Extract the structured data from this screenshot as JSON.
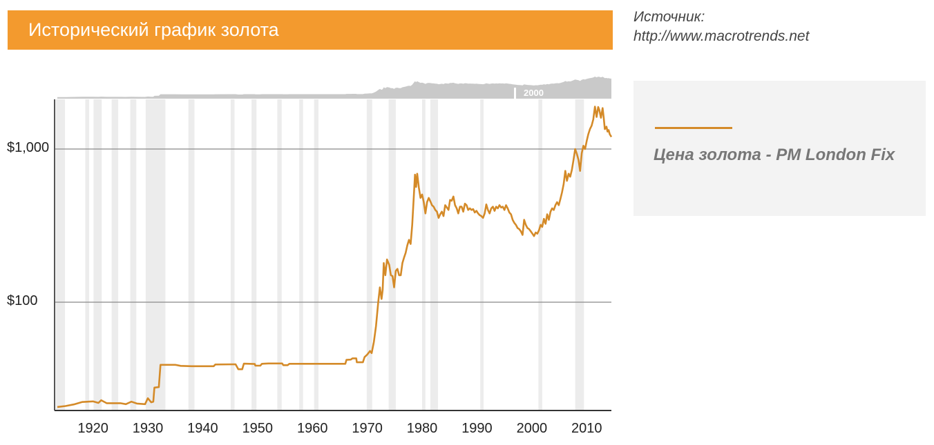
{
  "header": {
    "title": "Исторический график золота"
  },
  "source": {
    "label": "Источник:",
    "url": "http://www.macrotrends.net"
  },
  "legend": {
    "label": "Цена золота - PM London Fix",
    "color": "#d48a28"
  },
  "colors": {
    "title_bar": "#f39a2e",
    "line": "#d48a28",
    "recession_band": "#ececec",
    "navigator": "#c9c9c9",
    "grid": "#888888"
  },
  "navigator": {
    "marker_label": "2000"
  },
  "chart_data": {
    "type": "line",
    "title": "Исторический график золота",
    "xlabel": "",
    "ylabel": "",
    "y_scale": "log",
    "ylim": [
      20,
      1900
    ],
    "xlim": [
      1913,
      2014.5
    ],
    "y_ticks": [
      {
        "value": 100,
        "label": "$100"
      },
      {
        "value": 1000,
        "label": "$1,000"
      }
    ],
    "x_ticks": [
      {
        "value": 1920,
        "label": "1920"
      },
      {
        "value": 1930,
        "label": "1930"
      },
      {
        "value": 1940,
        "label": "1940"
      },
      {
        "value": 1950,
        "label": "1950"
      },
      {
        "value": 1960,
        "label": "1960"
      },
      {
        "value": 1970,
        "label": "1970"
      },
      {
        "value": 1980,
        "label": "1980"
      },
      {
        "value": 1990,
        "label": "1990"
      },
      {
        "value": 2000,
        "label": "2000"
      },
      {
        "value": 2010,
        "label": "2010"
      }
    ],
    "recession_bands": [
      [
        1913.2,
        1914.9
      ],
      [
        1918.6,
        1919.3
      ],
      [
        1920.1,
        1921.6
      ],
      [
        1923.4,
        1924.6
      ],
      [
        1926.8,
        1927.9
      ],
      [
        1929.6,
        1933.2
      ],
      [
        1937.4,
        1938.5
      ],
      [
        1945.1,
        1945.8
      ],
      [
        1948.9,
        1949.8
      ],
      [
        1953.6,
        1954.4
      ],
      [
        1957.6,
        1958.3
      ],
      [
        1960.3,
        1961.1
      ],
      [
        1969.9,
        1970.9
      ],
      [
        1973.9,
        1975.2
      ],
      [
        1980.0,
        1980.6
      ],
      [
        1981.5,
        1982.9
      ],
      [
        1990.6,
        1991.2
      ],
      [
        2001.2,
        2001.9
      ],
      [
        2007.9,
        2009.5
      ]
    ],
    "series": [
      {
        "name": "Цена золота - PM London Fix",
        "points": [
          [
            1913.5,
            20.7
          ],
          [
            1915.0,
            21.0
          ],
          [
            1916.5,
            21.5
          ],
          [
            1918.0,
            22.3
          ],
          [
            1920.0,
            22.5
          ],
          [
            1921.0,
            22.0
          ],
          [
            1921.5,
            22.9
          ],
          [
            1922.5,
            21.9
          ],
          [
            1925.0,
            21.9
          ],
          [
            1926.0,
            21.6
          ],
          [
            1927.0,
            22.4
          ],
          [
            1928.0,
            21.8
          ],
          [
            1929.5,
            21.6
          ],
          [
            1930.0,
            23.6
          ],
          [
            1930.6,
            22.2
          ],
          [
            1931.0,
            22.4
          ],
          [
            1931.2,
            27.7
          ],
          [
            1932.0,
            27.9
          ],
          [
            1932.3,
            39.0
          ],
          [
            1935.0,
            39.0
          ],
          [
            1936.0,
            38.4
          ],
          [
            1938.0,
            38.2
          ],
          [
            1942.0,
            38.2
          ],
          [
            1942.3,
            39.2
          ],
          [
            1946.0,
            39.3
          ],
          [
            1946.5,
            36.5
          ],
          [
            1947.2,
            36.5
          ],
          [
            1947.5,
            39.7
          ],
          [
            1949.5,
            39.5
          ],
          [
            1949.6,
            38.5
          ],
          [
            1950.5,
            38.5
          ],
          [
            1950.8,
            39.6
          ],
          [
            1952.0,
            39.8
          ],
          [
            1954.5,
            39.8
          ],
          [
            1954.7,
            38.8
          ],
          [
            1955.5,
            38.8
          ],
          [
            1955.8,
            39.6
          ],
          [
            1960.0,
            39.6
          ],
          [
            1964.0,
            39.6
          ],
          [
            1966.0,
            39.6
          ],
          [
            1966.2,
            42.0
          ],
          [
            1967.0,
            42.2
          ],
          [
            1967.3,
            43.0
          ],
          [
            1968.0,
            43.0
          ],
          [
            1968.1,
            40.5
          ],
          [
            1969.2,
            40.5
          ],
          [
            1969.5,
            43.8
          ],
          [
            1970.0,
            45.5
          ],
          [
            1970.5,
            48.0
          ],
          [
            1970.8,
            46.5
          ],
          [
            1971.2,
            55.0
          ],
          [
            1971.6,
            70.0
          ],
          [
            1972.0,
            100.0
          ],
          [
            1972.3,
            125.0
          ],
          [
            1972.6,
            105.0
          ],
          [
            1972.8,
            120.0
          ],
          [
            1973.0,
            180.0
          ],
          [
            1973.3,
            150.0
          ],
          [
            1973.6,
            190.0
          ],
          [
            1974.0,
            175.0
          ],
          [
            1974.3,
            150.0
          ],
          [
            1974.6,
            148.0
          ],
          [
            1974.9,
            125.0
          ],
          [
            1975.2,
            160.0
          ],
          [
            1975.5,
            165.0
          ],
          [
            1975.8,
            150.0
          ],
          [
            1976.1,
            150.0
          ],
          [
            1976.4,
            180.0
          ],
          [
            1976.7,
            195.0
          ],
          [
            1977.0,
            210.0
          ],
          [
            1977.3,
            235.0
          ],
          [
            1977.6,
            255.0
          ],
          [
            1977.9,
            240.0
          ],
          [
            1978.2,
            320.0
          ],
          [
            1978.5,
            500.0
          ],
          [
            1978.7,
            680.0
          ],
          [
            1978.9,
            565.0
          ],
          [
            1979.1,
            690.0
          ],
          [
            1979.4,
            560.0
          ],
          [
            1979.7,
            480.0
          ],
          [
            1980.0,
            505.0
          ],
          [
            1980.3,
            450.0
          ],
          [
            1980.6,
            380.0
          ],
          [
            1980.9,
            450.0
          ],
          [
            1981.2,
            480.0
          ],
          [
            1981.5,
            455.0
          ],
          [
            1981.8,
            430.0
          ],
          [
            1982.1,
            420.0
          ],
          [
            1982.4,
            400.0
          ],
          [
            1982.7,
            390.0
          ],
          [
            1983.0,
            355.0
          ],
          [
            1983.3,
            375.0
          ],
          [
            1983.6,
            390.0
          ],
          [
            1983.9,
            365.0
          ],
          [
            1984.2,
            430.0
          ],
          [
            1984.5,
            415.0
          ],
          [
            1984.8,
            400.0
          ],
          [
            1985.1,
            465.0
          ],
          [
            1985.4,
            460.0
          ],
          [
            1985.7,
            490.0
          ],
          [
            1986.0,
            430.0
          ],
          [
            1986.3,
            410.0
          ],
          [
            1986.6,
            380.0
          ],
          [
            1986.9,
            420.0
          ],
          [
            1987.2,
            420.0
          ],
          [
            1987.5,
            390.0
          ],
          [
            1987.8,
            440.0
          ],
          [
            1988.1,
            430.0
          ],
          [
            1988.4,
            400.0
          ],
          [
            1988.7,
            410.0
          ],
          [
            1989.0,
            400.0
          ],
          [
            1989.3,
            405.0
          ],
          [
            1989.6,
            385.0
          ],
          [
            1989.9,
            395.0
          ],
          [
            1990.2,
            380.0
          ],
          [
            1990.5,
            370.0
          ],
          [
            1990.8,
            365.0
          ],
          [
            1991.1,
            355.0
          ],
          [
            1991.4,
            380.0
          ],
          [
            1991.7,
            435.0
          ],
          [
            1992.0,
            400.0
          ],
          [
            1992.3,
            380.0
          ],
          [
            1992.6,
            410.0
          ],
          [
            1992.9,
            420.0
          ],
          [
            1993.2,
            395.0
          ],
          [
            1993.5,
            420.0
          ],
          [
            1993.8,
            410.0
          ],
          [
            1994.1,
            430.0
          ],
          [
            1994.4,
            415.0
          ],
          [
            1994.7,
            420.0
          ],
          [
            1995.0,
            400.0
          ],
          [
            1995.3,
            430.0
          ],
          [
            1995.6,
            410.0
          ],
          [
            1995.9,
            385.0
          ],
          [
            1996.2,
            375.0
          ],
          [
            1996.5,
            345.0
          ],
          [
            1996.8,
            330.0
          ],
          [
            1997.1,
            320.0
          ],
          [
            1997.4,
            305.0
          ],
          [
            1997.7,
            300.0
          ],
          [
            1998.0,
            290.0
          ],
          [
            1998.3,
            275.0
          ],
          [
            1998.6,
            345.0
          ],
          [
            1998.9,
            320.0
          ],
          [
            1999.2,
            305.0
          ],
          [
            1999.5,
            300.0
          ],
          [
            1999.8,
            290.0
          ],
          [
            2000.1,
            280.0
          ],
          [
            2000.4,
            270.0
          ],
          [
            2000.7,
            285.0
          ],
          [
            2001.0,
            280.0
          ],
          [
            2001.3,
            295.0
          ],
          [
            2001.6,
            320.0
          ],
          [
            2001.9,
            310.0
          ],
          [
            2002.2,
            350.0
          ],
          [
            2002.5,
            325.0
          ],
          [
            2002.8,
            375.0
          ],
          [
            2003.1,
            345.0
          ],
          [
            2003.4,
            390.0
          ],
          [
            2003.7,
            410.0
          ],
          [
            2004.0,
            400.0
          ],
          [
            2004.3,
            430.0
          ],
          [
            2004.6,
            450.0
          ],
          [
            2004.9,
            430.0
          ],
          [
            2005.2,
            470.0
          ],
          [
            2005.5,
            520.0
          ],
          [
            2005.8,
            590.0
          ],
          [
            2006.1,
            720.0
          ],
          [
            2006.4,
            620.0
          ],
          [
            2006.7,
            690.0
          ],
          [
            2007.0,
            660.0
          ],
          [
            2007.3,
            730.0
          ],
          [
            2007.6,
            850.0
          ],
          [
            2007.9,
            1000.0
          ],
          [
            2008.2,
            930.0
          ],
          [
            2008.5,
            850.0
          ],
          [
            2008.8,
            720.0
          ],
          [
            2009.1,
            940.0
          ],
          [
            2009.4,
            1050.0
          ],
          [
            2009.7,
            1000.0
          ],
          [
            2010.0,
            1130.0
          ],
          [
            2010.3,
            1250.0
          ],
          [
            2010.6,
            1350.0
          ],
          [
            2010.9,
            1420.0
          ],
          [
            2011.2,
            1560.0
          ],
          [
            2011.5,
            1890.0
          ],
          [
            2011.8,
            1620.0
          ],
          [
            2012.1,
            1880.0
          ],
          [
            2012.3,
            1800.0
          ],
          [
            2012.6,
            1600.0
          ],
          [
            2012.9,
            1850.0
          ],
          [
            2013.1,
            1600.0
          ],
          [
            2013.3,
            1350.0
          ],
          [
            2013.6,
            1400.0
          ],
          [
            2013.8,
            1300.0
          ],
          [
            2014.0,
            1330.0
          ],
          [
            2014.2,
            1250.0
          ],
          [
            2014.5,
            1200.0
          ]
        ]
      }
    ]
  }
}
